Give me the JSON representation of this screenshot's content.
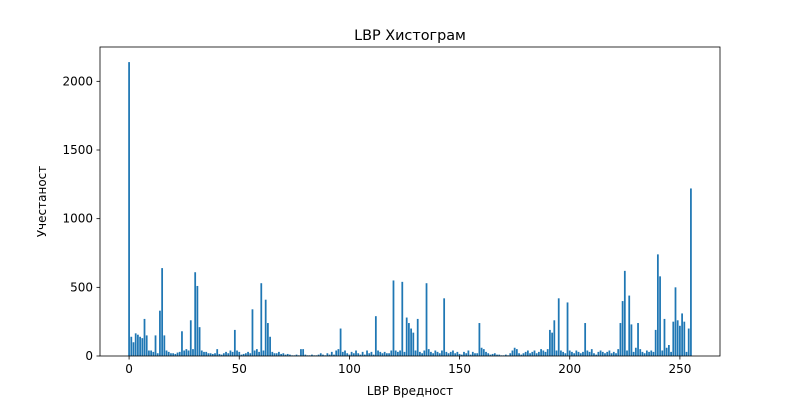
{
  "chart_data": {
    "type": "bar",
    "title": "LBP Хистограм",
    "x_label": "LBP Вредност",
    "y_label": "Учестаност",
    "color": "#1f77b4",
    "xlim": [
      -13.2,
      268.2
    ],
    "xticks": [
      0,
      50,
      100,
      150,
      200,
      250
    ],
    "ylim": [
      0,
      2250
    ],
    "yticks": [
      0,
      500,
      1000,
      1500,
      2000
    ],
    "x": [
      0,
      1,
      2,
      3,
      4,
      5,
      6,
      7,
      8,
      9,
      10,
      11,
      12,
      13,
      14,
      15,
      16,
      17,
      18,
      19,
      20,
      21,
      22,
      23,
      24,
      25,
      26,
      27,
      28,
      29,
      30,
      31,
      32,
      33,
      34,
      35,
      36,
      37,
      38,
      39,
      40,
      41,
      42,
      43,
      44,
      45,
      46,
      47,
      48,
      49,
      50,
      51,
      52,
      53,
      54,
      55,
      56,
      57,
      58,
      59,
      60,
      61,
      62,
      63,
      64,
      65,
      66,
      67,
      68,
      69,
      70,
      71,
      72,
      73,
      74,
      75,
      76,
      77,
      78,
      79,
      80,
      81,
      82,
      83,
      84,
      85,
      86,
      87,
      88,
      89,
      90,
      91,
      92,
      93,
      94,
      95,
      96,
      97,
      98,
      99,
      100,
      101,
      102,
      103,
      104,
      105,
      106,
      107,
      108,
      109,
      110,
      111,
      112,
      113,
      114,
      115,
      116,
      117,
      118,
      119,
      120,
      121,
      122,
      123,
      124,
      125,
      126,
      127,
      128,
      129,
      130,
      131,
      132,
      133,
      134,
      135,
      136,
      137,
      138,
      139,
      140,
      141,
      142,
      143,
      144,
      145,
      146,
      147,
      148,
      149,
      150,
      151,
      152,
      153,
      154,
      155,
      156,
      157,
      158,
      159,
      160,
      161,
      162,
      163,
      164,
      165,
      166,
      167,
      168,
      169,
      170,
      171,
      172,
      173,
      174,
      175,
      176,
      177,
      178,
      179,
      180,
      181,
      182,
      183,
      184,
      185,
      186,
      187,
      188,
      189,
      190,
      191,
      192,
      193,
      194,
      195,
      196,
      197,
      198,
      199,
      200,
      201,
      202,
      203,
      204,
      205,
      206,
      207,
      208,
      209,
      210,
      211,
      212,
      213,
      214,
      215,
      216,
      217,
      218,
      219,
      220,
      221,
      222,
      223,
      224,
      225,
      226,
      227,
      228,
      229,
      230,
      231,
      232,
      233,
      234,
      235,
      236,
      237,
      238,
      239,
      240,
      241,
      242,
      243,
      244,
      245,
      246,
      247,
      248,
      249,
      250,
      251,
      252,
      253,
      254,
      255
    ],
    "values": [
      2140,
      140,
      100,
      165,
      155,
      140,
      130,
      270,
      150,
      40,
      40,
      30,
      150,
      20,
      330,
      640,
      150,
      40,
      30,
      20,
      20,
      15,
      25,
      30,
      180,
      40,
      50,
      40,
      260,
      50,
      610,
      510,
      210,
      40,
      30,
      30,
      20,
      20,
      15,
      20,
      50,
      15,
      10,
      20,
      30,
      20,
      40,
      30,
      190,
      40,
      30,
      10,
      15,
      20,
      30,
      20,
      340,
      40,
      50,
      30,
      530,
      40,
      410,
      240,
      140,
      30,
      20,
      20,
      30,
      15,
      20,
      10,
      15,
      10,
      5,
      5,
      10,
      5,
      50,
      50,
      10,
      5,
      5,
      10,
      5,
      5,
      10,
      20,
      10,
      5,
      20,
      10,
      30,
      10,
      40,
      50,
      200,
      30,
      40,
      20,
      10,
      30,
      20,
      40,
      20,
      10,
      30,
      10,
      40,
      20,
      30,
      10,
      290,
      40,
      30,
      20,
      30,
      20,
      20,
      40,
      550,
      40,
      30,
      40,
      540,
      30,
      280,
      240,
      200,
      170,
      40,
      270,
      30,
      20,
      40,
      530,
      50,
      30,
      20,
      40,
      30,
      20,
      40,
      420,
      30,
      20,
      30,
      40,
      20,
      30,
      15,
      10,
      30,
      20,
      40,
      10,
      30,
      20,
      20,
      240,
      60,
      50,
      30,
      20,
      10,
      15,
      20,
      10,
      10,
      5,
      5,
      10,
      5,
      20,
      40,
      60,
      50,
      20,
      10,
      20,
      30,
      40,
      20,
      30,
      40,
      20,
      30,
      50,
      40,
      30,
      50,
      190,
      170,
      260,
      40,
      420,
      40,
      30,
      20,
      390,
      40,
      30,
      20,
      40,
      30,
      20,
      30,
      240,
      40,
      30,
      50,
      20,
      10,
      30,
      40,
      30,
      20,
      30,
      40,
      20,
      30,
      20,
      50,
      240,
      400,
      620,
      40,
      440,
      230,
      30,
      60,
      240,
      50,
      30,
      20,
      40,
      30,
      40,
      30,
      190,
      740,
      580,
      40,
      270,
      60,
      80,
      30,
      250,
      500,
      260,
      220,
      310,
      250,
      30,
      200,
      1220
    ]
  }
}
